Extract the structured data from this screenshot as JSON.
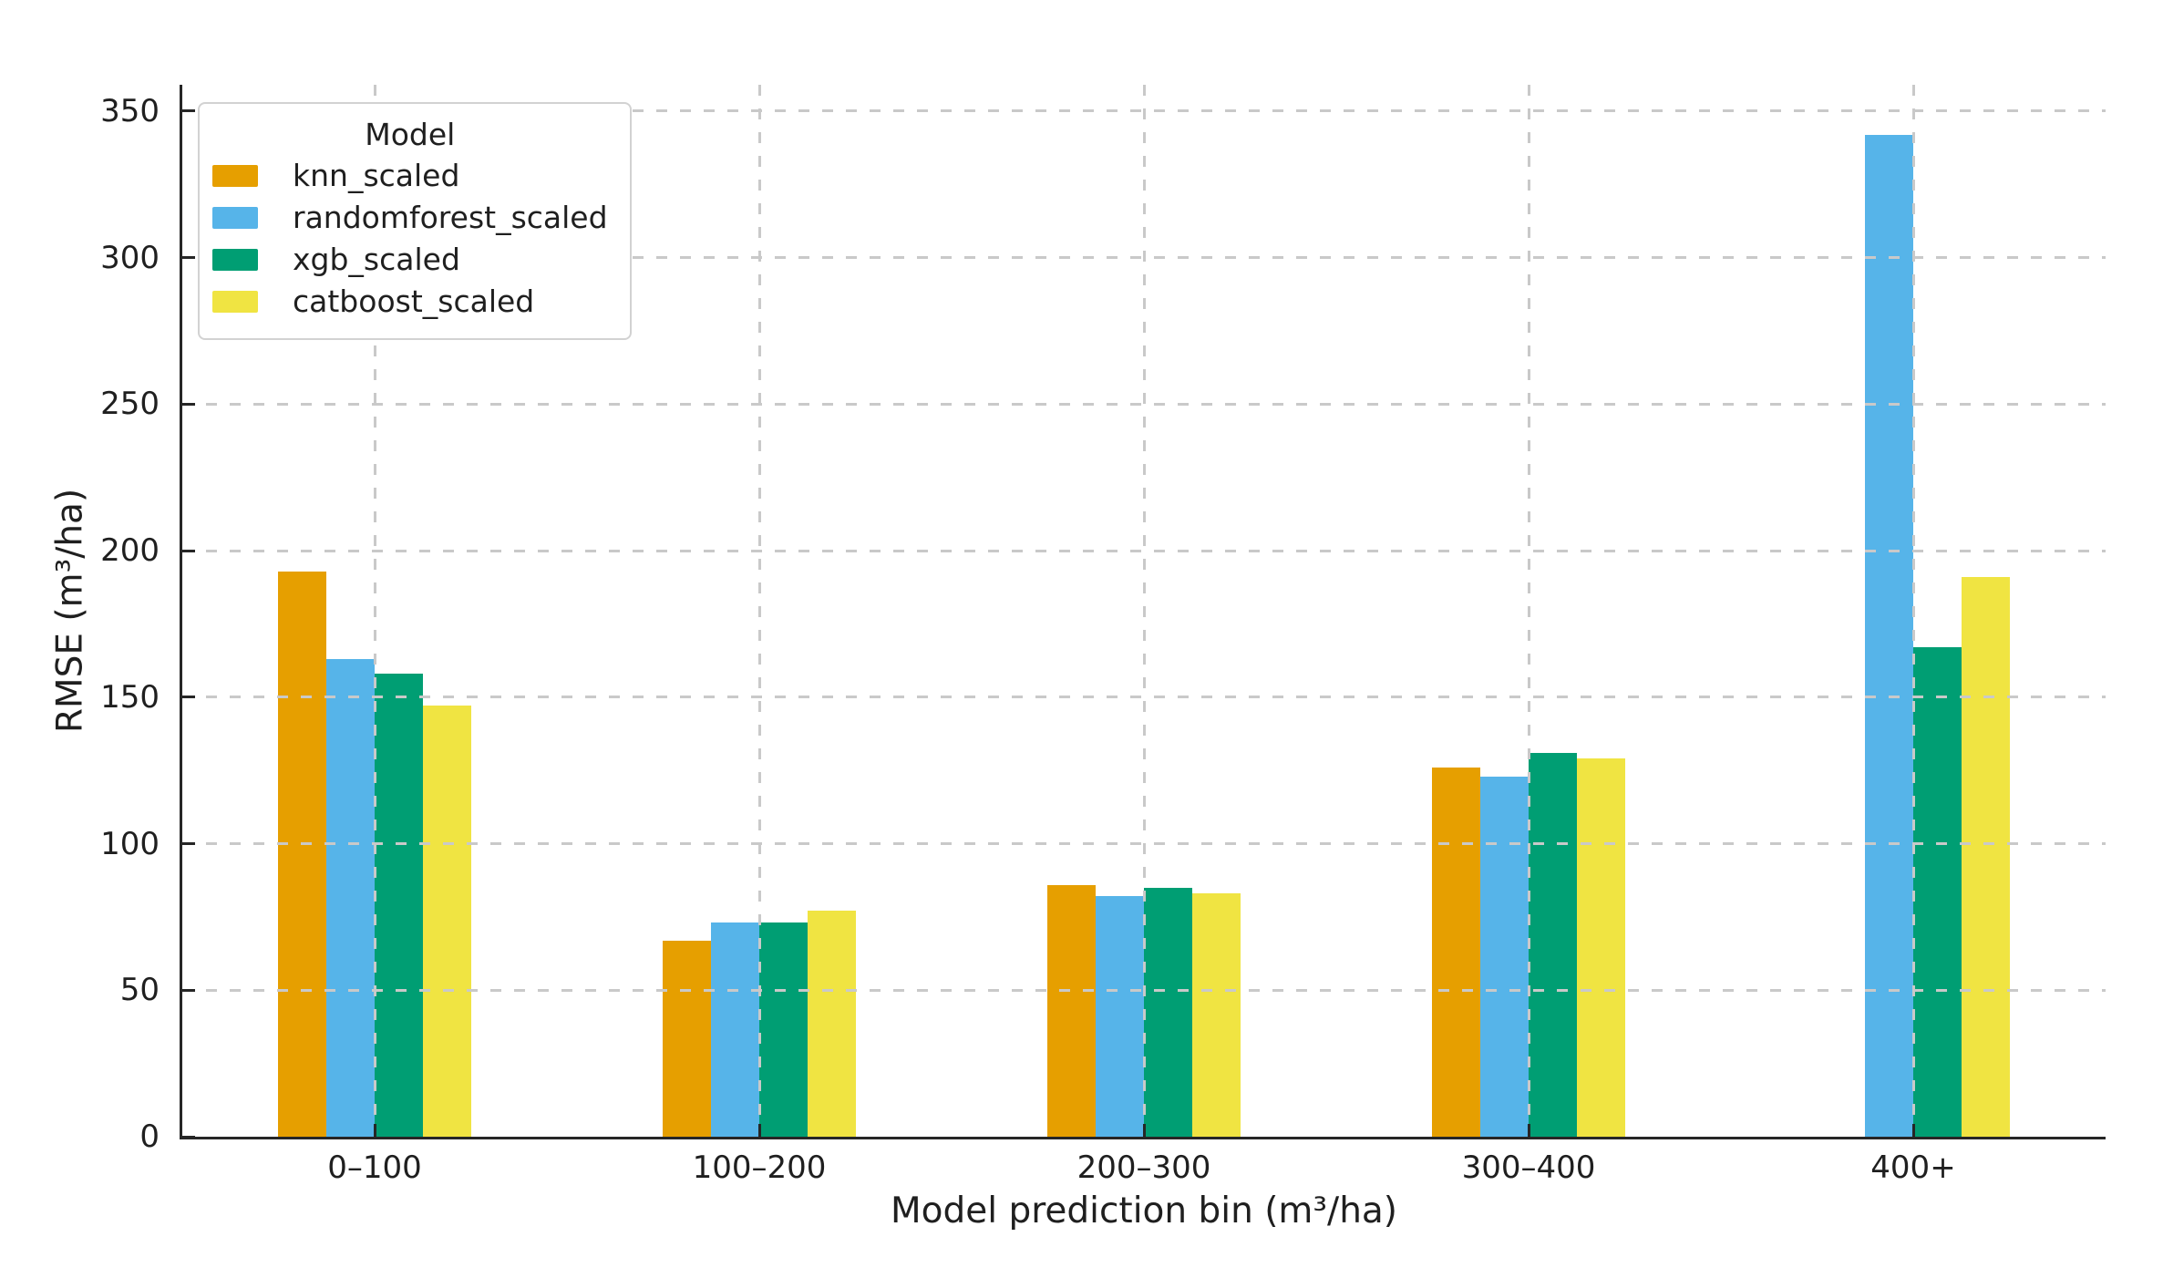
{
  "style": {
    "background": "#ffffff",
    "text_color": "#1f1f1f",
    "axis_color": "#262626",
    "grid_color": "#c9c9c9",
    "legend_border_color": "#d2d2d2"
  },
  "chart_data": {
    "type": "bar",
    "title": "",
    "xlabel": "Model prediction bin (m³/ha)",
    "ylabel": "RMSE (m³/ha)",
    "categories": [
      "0–100",
      "100–200",
      "200–300",
      "300–400",
      "400+"
    ],
    "series": [
      {
        "name": "knn_scaled",
        "color": "#E69F00",
        "values": [
          193,
          67,
          86,
          126,
          null
        ]
      },
      {
        "name": "randomforest_scaled",
        "color": "#56B4E9",
        "values": [
          163,
          73,
          82,
          123,
          342
        ]
      },
      {
        "name": "xgb_scaled",
        "color": "#009E73",
        "values": [
          158,
          73,
          85,
          131,
          167
        ]
      },
      {
        "name": "catboost_scaled",
        "color": "#F0E442",
        "values": [
          147,
          77,
          83,
          129,
          191
        ]
      }
    ],
    "y_ticks": [
      0,
      50,
      100,
      150,
      200,
      250,
      300,
      350
    ],
    "y_tick_labels": [
      "0",
      "50",
      "100",
      "150",
      "200",
      "250",
      "300",
      "350"
    ],
    "ylim": [
      0,
      359
    ],
    "grid": "dashed gridlines on both axes, drawn over bars",
    "legend": {
      "title": "Model",
      "position": "upper left"
    }
  }
}
